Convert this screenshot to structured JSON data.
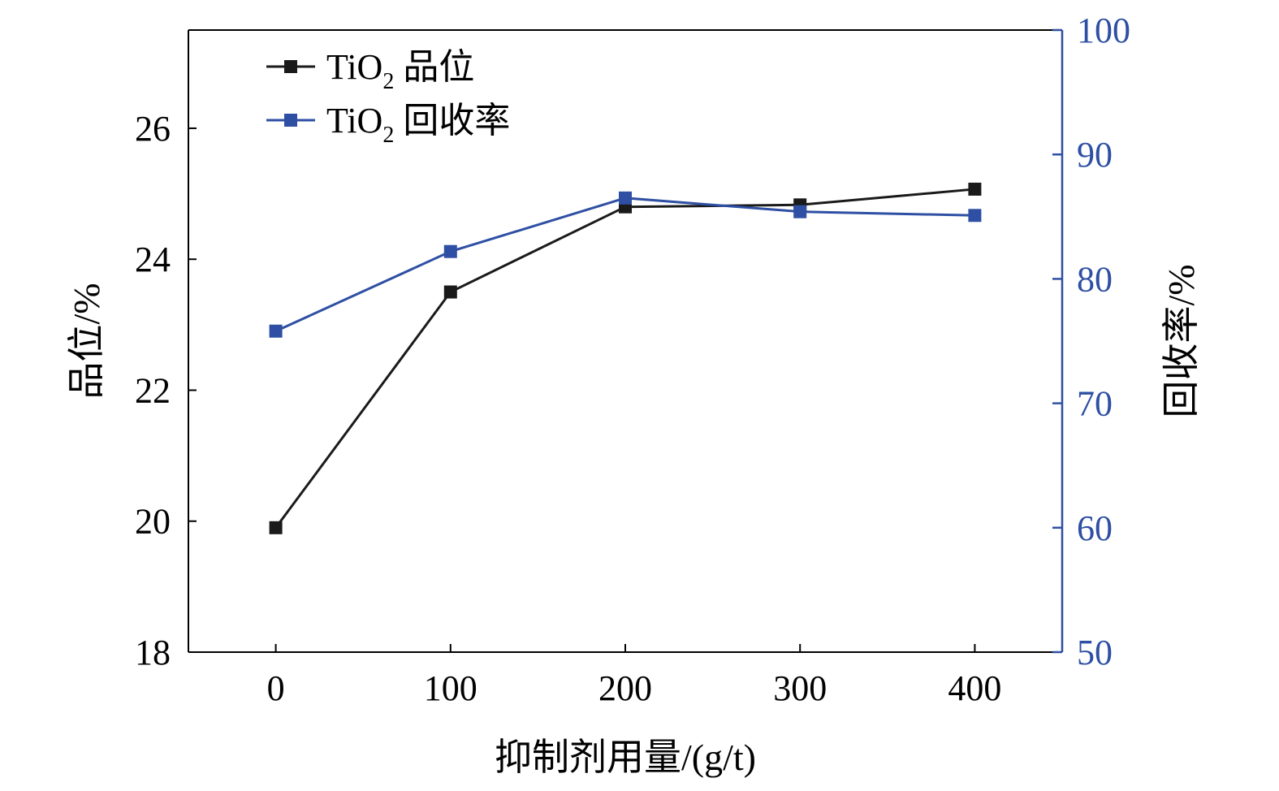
{
  "colors": {
    "grade": "#1a1a1a",
    "recovery": "#2e4fa3",
    "axis": "#000000",
    "right_axis": "#2e4fa3"
  },
  "chart_data": {
    "type": "line",
    "x": [
      0,
      100,
      200,
      300,
      400
    ],
    "xlim": [
      -50,
      450
    ],
    "xticks": [
      "0",
      "100",
      "200",
      "300",
      "400"
    ],
    "xlabel": "抑制剂用量/(g/t)",
    "y_left": {
      "label": "品位/%",
      "lim": [
        18,
        27.5
      ],
      "ticks": [
        "18",
        "20",
        "22",
        "24",
        "26"
      ]
    },
    "y_right": {
      "label": "回收率/%",
      "lim": [
        50,
        100
      ],
      "ticks": [
        "50",
        "60",
        "70",
        "80",
        "90",
        "100"
      ]
    },
    "series": [
      {
        "key": "grade",
        "name_main": "TiO",
        "name_sub": "2",
        "name_suffix": " 品位",
        "axis": "left",
        "values": [
          19.9,
          23.5,
          24.8,
          24.83,
          25.07
        ]
      },
      {
        "key": "recovery",
        "name_main": "TiO",
        "name_sub": "2",
        "name_suffix": " 回收率",
        "axis": "right",
        "values": [
          75.8,
          82.2,
          86.5,
          85.4,
          85.1
        ]
      }
    ],
    "legend": "top-left",
    "grid": false
  }
}
